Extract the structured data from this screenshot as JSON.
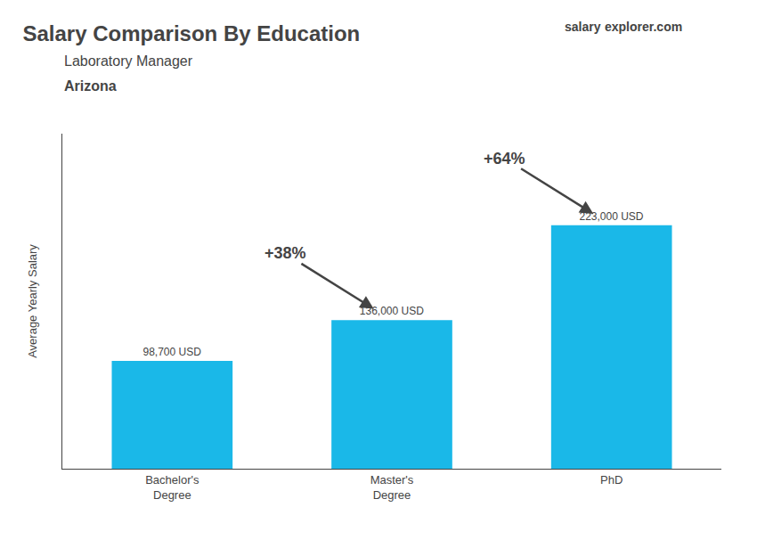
{
  "chart_data": {
    "type": "bar",
    "title": "Salary Comparison By Education",
    "subtitle": "Laboratory Manager",
    "ylabel": "Average Yearly Salary",
    "categories": [
      "Bachelor's\nDegree",
      "Master's\nDegree",
      "PhD"
    ],
    "values": [
      98700,
      136000,
      223000
    ],
    "value_labels": [
      "98,700 USD",
      "136,000 USD",
      "223,000 USD"
    ],
    "data_labels": true,
    "color": "#1ab8e8",
    "ylim": [
      0,
      306800
    ],
    "tick_labels": "x",
    "grid": false,
    "annotations": [
      {
        "text": "Arizona"
      },
      {
        "text": "salary"
      },
      {
        "text": "explorer.com"
      },
      {
        "text": "+38%",
        "from": "Bachelor's\nDegree",
        "to": "Master's\nDegree"
      },
      {
        "text": "+64%",
        "from": "Master's\nDegree",
        "to": "PhD"
      }
    ]
  }
}
